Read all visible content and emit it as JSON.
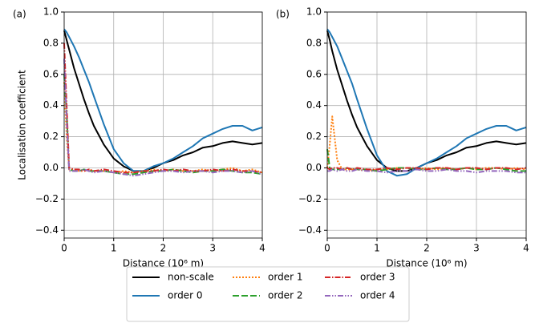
{
  "chart_data": [
    {
      "type": "line",
      "label": "(a)",
      "ylabel": "Localisation coefficient",
      "xlabel": "Distance (10⁶ m)",
      "xlim": [
        0,
        4
      ],
      "ylim": [
        -0.45,
        1.0
      ],
      "grid": true,
      "xticks": [
        0,
        1,
        2,
        3,
        4
      ],
      "yticks": [
        {
          "value": -0.4,
          "label": "−0.4"
        },
        {
          "value": -0.2,
          "label": "−0.2"
        },
        {
          "value": 0,
          "label": "0.0"
        },
        0.2,
        0.4,
        0.6,
        0.8,
        {
          "value": 1,
          "label": "1.0"
        }
      ],
      "x": [
        0,
        0.05,
        0.1,
        0.2,
        0.3,
        0.4,
        0.5,
        0.6,
        0.8,
        1.0,
        1.2,
        1.4,
        1.6,
        1.8,
        2.0,
        2.2,
        2.4,
        2.6,
        2.8,
        3.0,
        3.2,
        3.4,
        3.6,
        3.8,
        4.0
      ],
      "series": [
        {
          "name": "non-scale",
          "color": "#000000",
          "dash": "solid",
          "values": [
            0.88,
            0.82,
            0.76,
            0.64,
            0.54,
            0.44,
            0.35,
            0.27,
            0.15,
            0.06,
            0.01,
            -0.02,
            -0.02,
            0,
            0.03,
            0.05,
            0.08,
            0.1,
            0.13,
            0.14,
            0.16,
            0.17,
            0.16,
            0.15,
            0.16
          ]
        },
        {
          "name": "order 0",
          "color": "#1f77b4",
          "dash": "solid",
          "values": [
            0.89,
            0.87,
            0.84,
            0.78,
            0.71,
            0.63,
            0.55,
            0.46,
            0.28,
            0.12,
            0.03,
            -0.02,
            -0.02,
            0.01,
            0.03,
            0.06,
            0.1,
            0.14,
            0.19,
            0.22,
            0.25,
            0.27,
            0.27,
            0.24,
            0.26
          ]
        },
        {
          "name": "order 1",
          "color": "#ff7f0e",
          "dash": "dotted",
          "values": [
            0.55,
            0.2,
            -0.01,
            -0.01,
            -0.02,
            -0.02,
            -0.01,
            -0.02,
            -0.02,
            -0.03,
            -0.02,
            -0.03,
            -0.02,
            -0.01,
            -0.02,
            -0.01,
            -0.02,
            -0.02,
            -0.01,
            -0.02,
            -0.01,
            0,
            -0.02,
            -0.01,
            -0.03
          ]
        },
        {
          "name": "order 2",
          "color": "#2ca02c",
          "dash": "dashed",
          "values": [
            0.6,
            0.35,
            -0.01,
            -0.02,
            -0.02,
            -0.01,
            -0.02,
            -0.02,
            -0.02,
            -0.03,
            -0.04,
            -0.04,
            -0.03,
            -0.02,
            -0.02,
            -0.01,
            -0.02,
            -0.03,
            -0.02,
            -0.02,
            -0.01,
            -0.02,
            -0.03,
            -0.03,
            -0.04
          ]
        },
        {
          "name": "order 3",
          "color": "#d62728",
          "dash": "dashdot",
          "values": [
            0.8,
            0.4,
            0,
            -0.01,
            -0.01,
            -0.02,
            -0.01,
            -0.02,
            -0.01,
            -0.02,
            -0.03,
            -0.03,
            -0.02,
            -0.02,
            -0.01,
            -0.02,
            -0.01,
            -0.02,
            -0.02,
            -0.01,
            -0.02,
            -0.01,
            -0.02,
            -0.02,
            -0.03
          ]
        },
        {
          "name": "order 4",
          "color": "#9467bd",
          "dash": "dashdotdot",
          "values": [
            0.7,
            0.3,
            -0.02,
            -0.02,
            -0.02,
            -0.01,
            -0.02,
            -0.03,
            -0.02,
            -0.03,
            -0.04,
            -0.05,
            -0.04,
            -0.03,
            -0.02,
            -0.02,
            -0.03,
            -0.02,
            -0.02,
            -0.03,
            -0.02,
            -0.02,
            -0.03,
            -0.02,
            -0.04
          ]
        }
      ]
    },
    {
      "type": "line",
      "label": "(b)",
      "xlabel": "Distance (10⁶ m)",
      "xlim": [
        0,
        4
      ],
      "ylim": [
        -0.45,
        1.0
      ],
      "grid": true,
      "xticks": [
        0,
        1,
        2,
        3,
        4
      ],
      "yticks": [
        {
          "value": -0.4,
          "label": "−0.4"
        },
        {
          "value": -0.2,
          "label": "−0.2"
        },
        {
          "value": 0,
          "label": "0.0"
        },
        0.2,
        0.4,
        0.6,
        0.8,
        {
          "value": 1,
          "label": "1.0"
        }
      ],
      "x": [
        0,
        0.05,
        0.1,
        0.2,
        0.3,
        0.4,
        0.5,
        0.6,
        0.8,
        1.0,
        1.2,
        1.4,
        1.6,
        1.8,
        2.0,
        2.2,
        2.4,
        2.6,
        2.8,
        3.0,
        3.2,
        3.4,
        3.6,
        3.8,
        4.0
      ],
      "series": [
        {
          "color": "#000000",
          "dash": "solid",
          "values": [
            0.88,
            0.82,
            0.75,
            0.63,
            0.53,
            0.43,
            0.34,
            0.26,
            0.14,
            0.05,
            0.0,
            -0.02,
            -0.02,
            0,
            0.03,
            0.05,
            0.08,
            0.1,
            0.13,
            0.14,
            0.16,
            0.17,
            0.16,
            0.15,
            0.16
          ]
        },
        {
          "color": "#1f77b4",
          "dash": "solid",
          "values": [
            0.89,
            0.87,
            0.84,
            0.78,
            0.7,
            0.62,
            0.54,
            0.44,
            0.25,
            0.08,
            -0.02,
            -0.05,
            -0.04,
            0.0,
            0.03,
            0.06,
            0.1,
            0.14,
            0.19,
            0.22,
            0.25,
            0.27,
            0.27,
            0.24,
            0.26
          ]
        },
        {
          "color": "#ff7f0e",
          "dash": "dotted",
          "values": [
            0.0,
            0.15,
            0.33,
            0.05,
            -0.01,
            -0.01,
            -0.01,
            -0.01,
            -0.02,
            -0.01,
            -0.01,
            0,
            0,
            -0.01,
            0,
            -0.01,
            0,
            -0.01,
            0,
            -0.01,
            0,
            0,
            -0.01,
            0,
            -0.01
          ]
        },
        {
          "color": "#2ca02c",
          "dash": "dashed",
          "values": [
            0.12,
            0.0,
            -0.01,
            -0.01,
            -0.01,
            0,
            -0.01,
            -0.01,
            -0.01,
            -0.02,
            -0.01,
            0,
            0,
            -0.01,
            -0.01,
            0,
            -0.01,
            -0.01,
            0,
            -0.01,
            -0.01,
            0,
            -0.01,
            -0.02,
            -0.02
          ]
        },
        {
          "color": "#d62728",
          "dash": "dashdot",
          "values": [
            0.0,
            -0.01,
            0,
            0,
            -0.01,
            0,
            -0.01,
            0,
            -0.01,
            -0.01,
            0,
            -0.01,
            0,
            0,
            -0.01,
            0,
            0,
            -0.01,
            0,
            0,
            -0.01,
            0,
            0,
            -0.01,
            0.0
          ]
        },
        {
          "color": "#9467bd",
          "dash": "dashdotdot",
          "values": [
            -0.02,
            -0.02,
            -0.01,
            -0.02,
            -0.01,
            -0.02,
            -0.02,
            -0.01,
            -0.02,
            -0.02,
            -0.03,
            -0.02,
            -0.02,
            -0.01,
            -0.02,
            -0.02,
            -0.01,
            -0.02,
            -0.02,
            -0.03,
            -0.02,
            -0.02,
            -0.02,
            -0.03,
            -0.03
          ]
        }
      ]
    }
  ]
}
